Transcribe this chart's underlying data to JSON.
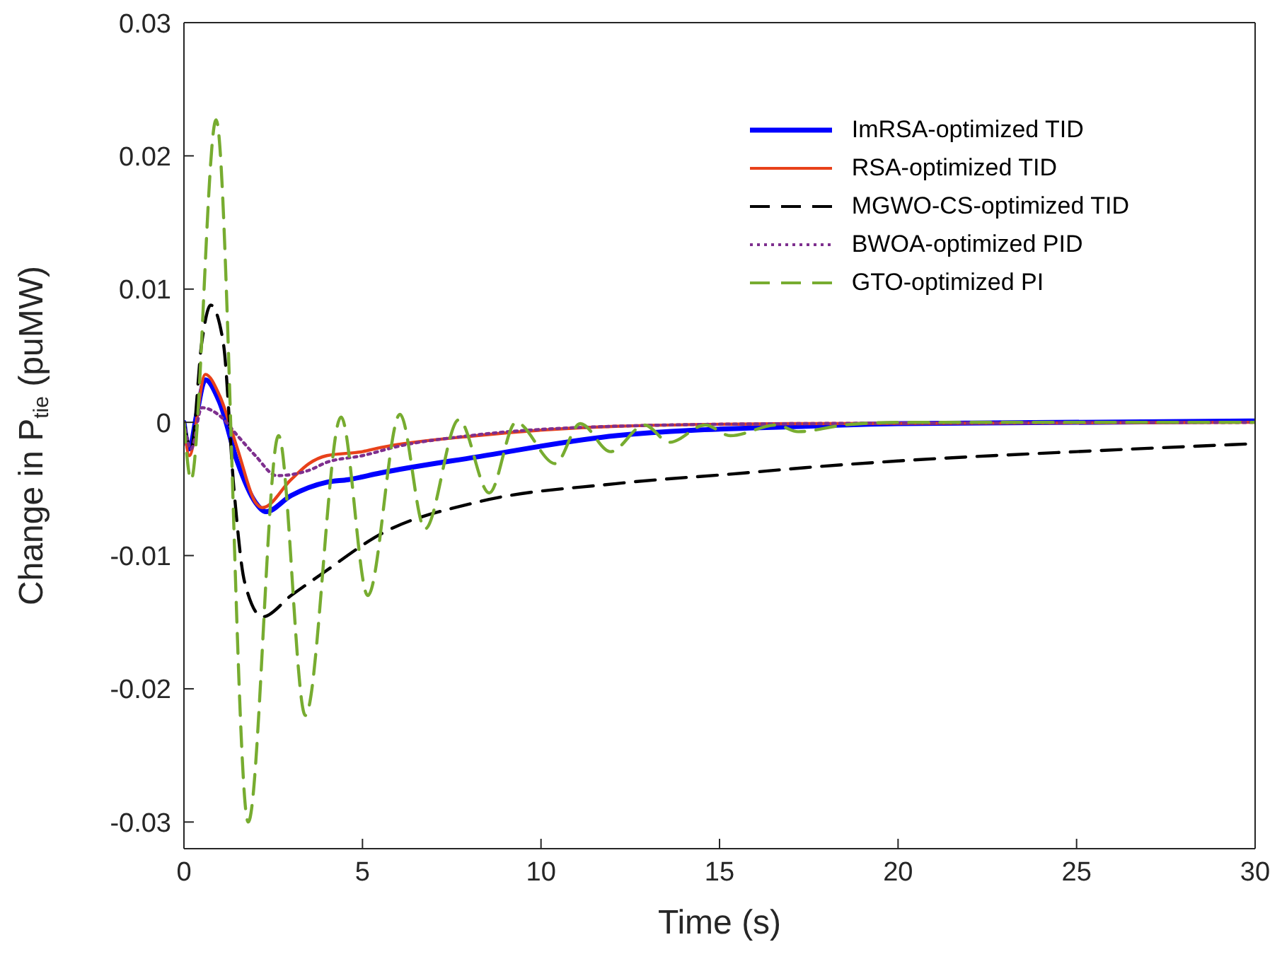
{
  "chart_data": {
    "type": "line",
    "xlabel": "Time (s)",
    "ylabel": "Change in P$_{tie}$ (puMW)",
    "xlim": [
      0,
      30
    ],
    "xticks": [
      0,
      5,
      10,
      15,
      20,
      25,
      30
    ],
    "ylim": [
      -0.032,
      0.03
    ],
    "yticks": [
      -0.03,
      -0.02,
      -0.01,
      0,
      0.01,
      0.02,
      0.03
    ],
    "grid": false,
    "legend": "top right",
    "marker": "none",
    "series": [
      {
        "name": "ImRSA-optimized TID",
        "color": "#0000ff",
        "line_style": "solid",
        "x": [
          0,
          0.15,
          0.35,
          0.6,
          1,
          1.5,
          2,
          2.3,
          3,
          4,
          4.6,
          5.5,
          8.2,
          12.1,
          17.4,
          20,
          30
        ],
        "values": [
          0,
          -0.002,
          0.0005,
          0.0032,
          0.0015,
          -0.003,
          -0.006,
          -0.0067,
          -0.0055,
          -0.0045,
          -0.0043,
          -0.0038,
          -0.0026,
          -0.001,
          -0.0003,
          -0.0001,
          0.0001
        ]
      },
      {
        "name": "RSA-optimized TID",
        "color": "#e8411a",
        "line_style": "solid",
        "x": [
          0,
          0.15,
          0.6,
          1,
          1.5,
          2,
          2.2,
          3,
          3.5,
          4,
          5,
          5.5,
          8.2,
          12.1,
          17,
          30
        ],
        "values": [
          0,
          -0.0025,
          0.0036,
          0.002,
          -0.002,
          -0.006,
          -0.0064,
          -0.0043,
          -0.0031,
          -0.0025,
          -0.0022,
          -0.0019,
          -0.001,
          -0.0003,
          -0.0001,
          0
        ]
      },
      {
        "name": "MGWO-CS-optimized TID",
        "color": "#000000",
        "line_style": "dashed",
        "x": [
          0,
          0.2,
          0.5,
          0.75,
          1.1,
          1.4,
          1.7,
          2.2,
          3,
          3.9,
          5.5,
          8.2,
          12.1,
          15.7,
          17.4,
          20,
          25,
          30
        ],
        "values": [
          0,
          -0.002,
          0.006,
          0.0088,
          0.006,
          -0.005,
          -0.012,
          -0.0146,
          -0.013,
          -0.0113,
          -0.0084,
          -0.006,
          -0.0046,
          -0.0038,
          -0.0034,
          -0.0029,
          -0.0022,
          -0.0016
        ]
      },
      {
        "name": "BWOA-optimized PID",
        "color": "#7e2f8e",
        "line_style": "dotted",
        "x": [
          0,
          0.2,
          0.5,
          1,
          1.5,
          2,
          2.6,
          3.5,
          4,
          5,
          6,
          8,
          12,
          17,
          30
        ],
        "values": [
          0,
          -0.002,
          0.0011,
          0.0005,
          -0.001,
          -0.0025,
          -0.004,
          -0.0036,
          -0.003,
          -0.0025,
          -0.0018,
          -0.001,
          -0.0003,
          -0.0001,
          0
        ]
      },
      {
        "name": "GTO-optimized PI",
        "color": "#77ac30",
        "line_style": "dashed",
        "x": [
          0,
          0.2,
          0.9,
          1.8,
          2.65,
          3.4,
          4.4,
          5.15,
          6.05,
          6.75,
          7.7,
          8.55,
          9.3,
          10.4,
          11.1,
          11.95,
          12.9,
          13.6,
          14.6,
          15.3,
          16.6,
          17.2,
          18.5,
          20,
          30
        ],
        "values": [
          0,
          -0.0043,
          0.0227,
          -0.03,
          -0.001,
          -0.022,
          0.0004,
          -0.013,
          0.0006,
          -0.008,
          0.0002,
          -0.0053,
          0,
          -0.0031,
          -0.0001,
          -0.0022,
          -0.0002,
          -0.0015,
          -0.0002,
          -0.001,
          -0.0002,
          -0.0007,
          -0.0002,
          0,
          0
        ]
      }
    ]
  }
}
